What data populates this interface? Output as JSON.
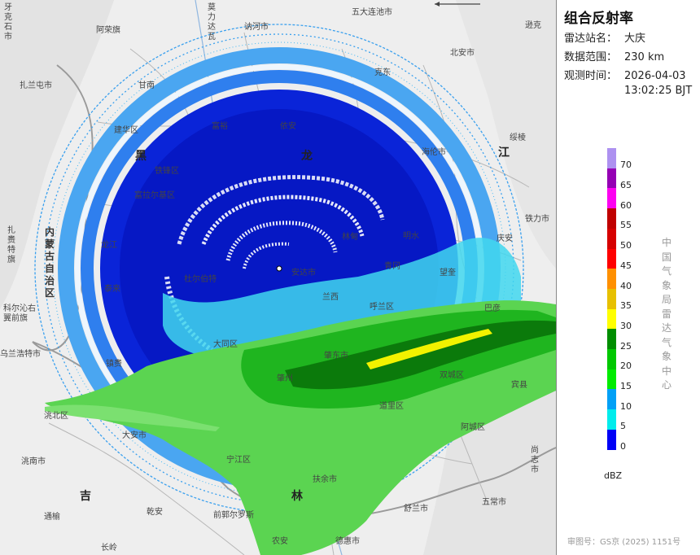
{
  "panel": {
    "title": "组合反射率",
    "station_label": "雷达站名：",
    "station_value": "大庆",
    "range_label": "数据范围：",
    "range_value": "230 km",
    "time_label": "观测时间：",
    "time_date": "2026-04-03",
    "time_clock": "13:02:25 BJT",
    "legend_unit": "dBZ",
    "legend": [
      {
        "label": "70",
        "color": "#ad91f0"
      },
      {
        "label": "65",
        "color": "#9500b4"
      },
      {
        "label": "60",
        "color": "#fd00f1"
      },
      {
        "label": "55",
        "color": "#c00000"
      },
      {
        "label": "50",
        "color": "#d60000"
      },
      {
        "label": "45",
        "color": "#ff0000"
      },
      {
        "label": "40",
        "color": "#ff9000"
      },
      {
        "label": "35",
        "color": "#e7c000"
      },
      {
        "label": "30",
        "color": "#ffff00"
      },
      {
        "label": "25",
        "color": "#008e00"
      },
      {
        "label": "20",
        "color": "#00c800"
      },
      {
        "label": "15",
        "color": "#00ec00"
      },
      {
        "label": "10",
        "color": "#01a0f6"
      },
      {
        "label": "5",
        "color": "#00ecec"
      },
      {
        "label": "0",
        "color": "#0000f6"
      }
    ],
    "legend_ticks": [
      "70",
      "65",
      "60",
      "55",
      "50",
      "45",
      "40",
      "35",
      "30",
      "25",
      "20",
      "15",
      "10",
      "5",
      "0"
    ],
    "org_name": [
      "中",
      "国",
      "气",
      "象",
      "局",
      "雷",
      "达",
      "气",
      "象",
      "中",
      "心"
    ],
    "review_no": "审图号：GS京 (2025) 1151号"
  },
  "map": {
    "places": [
      {
        "name": "五大连池市"
      },
      {
        "name": "逊克"
      },
      {
        "name": "阿荣旗"
      },
      {
        "name": "讷河市"
      },
      {
        "name": "北安市"
      },
      {
        "name": "扎兰屯市"
      },
      {
        "name": "甘南"
      },
      {
        "name": "克东"
      },
      {
        "name": "依安"
      },
      {
        "name": "绥棱"
      },
      {
        "name": "海伦市"
      },
      {
        "name": "海伦市"
      },
      {
        "name": "富裕"
      },
      {
        "name": "铁锋区"
      },
      {
        "name": "建华区"
      },
      {
        "name": "富拉尔基区"
      },
      {
        "name": "铁力市"
      },
      {
        "name": "庆安"
      },
      {
        "name": "明水"
      },
      {
        "name": "林甸"
      },
      {
        "name": "安达市"
      },
      {
        "name": "巴彦"
      },
      {
        "name": "泰来"
      },
      {
        "name": "杜尔伯特"
      },
      {
        "name": "大同区"
      },
      {
        "name": "肇东市"
      },
      {
        "name": "肇州"
      },
      {
        "name": "双城区"
      },
      {
        "name": "宾县"
      },
      {
        "name": "镇赉"
      },
      {
        "name": "洮北区"
      },
      {
        "name": "大安市"
      },
      {
        "name": "乾安"
      },
      {
        "name": "前郭尔罗斯"
      },
      {
        "name": "扶余市"
      },
      {
        "name": "道里区"
      },
      {
        "name": "阿城区"
      },
      {
        "name": "双城区"
      },
      {
        "name": "乌兰浩特市"
      },
      {
        "name": "科尔沁右翼前旗"
      },
      {
        "name": "洮南市"
      },
      {
        "name": "通榆"
      },
      {
        "name": "长岭"
      },
      {
        "name": "农安"
      },
      {
        "name": "德惠市"
      },
      {
        "name": "五常市"
      },
      {
        "name": "舒兰市"
      },
      {
        "name": "宾县"
      },
      {
        "name": "呼兰区"
      },
      {
        "name": "兰西"
      },
      {
        "name": "青冈"
      },
      {
        "name": "望奎"
      },
      {
        "name": "龙江"
      },
      {
        "name": "尚志市"
      },
      {
        "name": "宁江区"
      }
    ],
    "regions": [
      "黑",
      "龙",
      "江",
      "吉",
      "林"
    ],
    "vertical_labels": [
      "内蒙古自治区"
    ],
    "vertical_small": [
      "牙克石市",
      "扎赉特旗",
      "莫力达瓦"
    ]
  }
}
